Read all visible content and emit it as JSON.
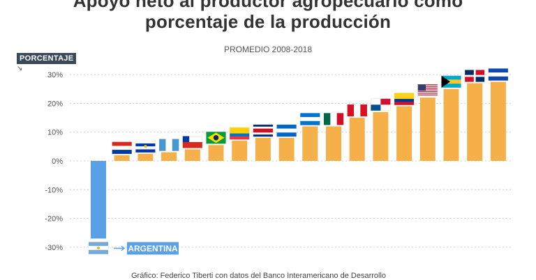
{
  "title": "Apoyo neto al productor agropecuario como\nporcentaje de la producción",
  "subtitle": "PROMEDIO 2008-2018",
  "source": "Gráfico: Federico Tiberti con datos del Banco Interamericano de Desarrollo",
  "chart_data": {
    "type": "bar",
    "title": "Apoyo neto al productor agropecuario como porcentaje de la producción",
    "subtitle": "PROMEDIO 2008-2018",
    "ylabel": "PORCENTAJE",
    "yticks": [
      "30%",
      "20%",
      "10%",
      "0%",
      "-10%",
      "-20%",
      "-30%"
    ],
    "ylim": [
      -35,
      35
    ],
    "grid": true,
    "categories": [
      "Argentina",
      "Paraguay",
      "Uruguay",
      "Guatemala",
      "Chile",
      "Brasil",
      "Ecuador",
      "Costa Rica",
      "Nicaragua",
      "Honduras",
      "México",
      "Perú",
      "Panamá",
      "Colombia",
      "Estados Unidos",
      "Bahamas",
      "República Dominicana",
      "El Salvador"
    ],
    "values": [
      -27,
      2,
      2.5,
      3,
      4,
      5.5,
      7,
      8,
      8,
      12,
      12,
      15,
      17,
      19,
      22,
      25,
      27,
      27.5
    ],
    "annotations": [
      {
        "category": "Argentina",
        "text": "ARGENTINA"
      }
    ],
    "colors": {
      "negative": "#5aa0e6",
      "positive": "#f5b04a"
    }
  }
}
